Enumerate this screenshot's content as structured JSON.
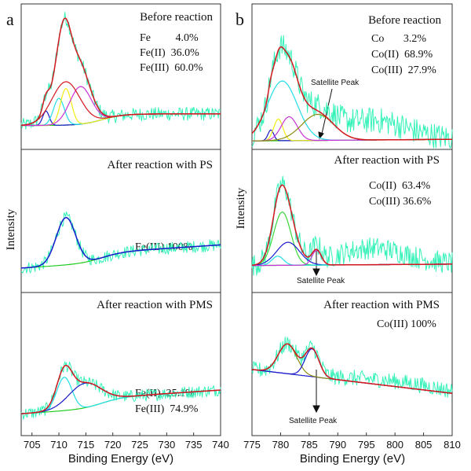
{
  "figure": {
    "panel_a_letter": "a",
    "panel_b_letter": "b",
    "y_axis_label": "Intensity",
    "x_axis_label": "Binding Energy (eV)"
  },
  "colors": {
    "raw": "#33f2b8",
    "envelope": "#d3171e",
    "blue": "#1a1acc",
    "cyan": "#22dde6",
    "yellow": "#f2ec14",
    "magenta": "#c833d6",
    "green": "#3ad83a",
    "olive": "#8c8c14",
    "baseline": "#22cc22"
  },
  "chart_data": [
    {
      "id": "fe_before",
      "type": "line",
      "title": "Before reaction",
      "xlim": [
        703,
        740
      ],
      "xticks": [
        705,
        710,
        715,
        720,
        725,
        730,
        735,
        740
      ],
      "xlabel": "Binding Energy (eV)",
      "ylabel": "Intensity",
      "annotations": [
        "Fe         4.0%",
        "Fe(II)  36.0%",
        "Fe(III)  60.0%"
      ],
      "components": [
        {
          "name": "Fe",
          "color": "blue",
          "center": 707.6,
          "height": 0.15,
          "width": 0.6
        },
        {
          "name": "Fe(II)",
          "color": "cyan",
          "center": 710.0,
          "height": 0.28,
          "width": 1.0
        },
        {
          "name": "Fe(II)",
          "color": "yellow",
          "center": 711.3,
          "height": 0.38,
          "width": 1.0
        },
        {
          "name": "Fe(III)",
          "color": "magenta",
          "center": 714.0,
          "height": 0.39,
          "width": 2.0
        },
        {
          "name": "Fe(III)",
          "color": "red",
          "center": 711.3,
          "height": 0.45,
          "width": 2.6
        }
      ]
    },
    {
      "id": "fe_ps",
      "type": "line",
      "title": "After reaction with PS",
      "xlim": [
        703,
        740
      ],
      "annotations": [
        "Fe(III) 100%"
      ],
      "components": [
        {
          "name": "Fe(III)",
          "color": "cyan",
          "center": 711.3,
          "height": 0.55,
          "width": 1.8
        }
      ]
    },
    {
      "id": "fe_pms",
      "type": "line",
      "title": "After reaction with PMS",
      "xlim": [
        703,
        740
      ],
      "annotations": [
        "Fe(II)  25.1%",
        "Fe(III)  74.9%"
      ],
      "components": [
        {
          "name": "Fe(II)",
          "color": "cyan",
          "center": 711.0,
          "height": 0.38,
          "width": 1.4
        },
        {
          "name": "Fe(III)",
          "color": "blue",
          "center": 714.8,
          "height": 0.28,
          "width": 3.0
        }
      ]
    },
    {
      "id": "co_before",
      "type": "line",
      "title": "Before reaction",
      "xlim": [
        775,
        810
      ],
      "xticks": [
        775,
        780,
        785,
        790,
        795,
        800,
        805,
        810
      ],
      "xlabel": "Binding Energy (eV)",
      "ylabel": "Intensity",
      "annotations": [
        "Co       3.2%",
        "Co(II)  68.9%",
        "Co(III)  27.9%"
      ],
      "satellite_label": "Satellite Peak",
      "components": [
        {
          "name": "Co",
          "color": "blue",
          "center": 778.3,
          "height": 0.1,
          "width": 0.5
        },
        {
          "name": "Co(III)",
          "color": "yellow",
          "center": 779.6,
          "height": 0.2,
          "width": 0.8
        },
        {
          "name": "Co(II)",
          "color": "cyan",
          "center": 780.3,
          "height": 0.55,
          "width": 2.6
        },
        {
          "name": "Co(II)",
          "color": "magenta",
          "center": 781.5,
          "height": 0.22,
          "width": 1.4
        },
        {
          "name": "Satellite",
          "color": "olive",
          "center": 786.5,
          "height": 0.24,
          "width": 2.8
        }
      ]
    },
    {
      "id": "co_ps",
      "type": "line",
      "title": "After reaction with PS",
      "xlim": [
        775,
        810
      ],
      "annotations": [
        "Co(II)  63.4%",
        "Co(III) 36.6%"
      ],
      "satellite_label": "Satellite Peak",
      "components": [
        {
          "name": "Co(II)",
          "color": "green",
          "center": 780.3,
          "height": 0.58,
          "width": 1.5
        },
        {
          "name": "Co(III)",
          "color": "blue",
          "center": 781.3,
          "height": 0.25,
          "width": 2.0
        },
        {
          "name": "Co",
          "color": "cyan",
          "center": 779.5,
          "height": 0.1,
          "width": 1.0
        },
        {
          "name": "Satellite",
          "color": "magenta",
          "center": 786.3,
          "height": 0.16,
          "width": 0.8
        }
      ]
    },
    {
      "id": "co_pms",
      "type": "line",
      "title": "After reaction with PMS",
      "xlim": [
        775,
        810
      ],
      "annotations": [
        "Co(III) 100%"
      ],
      "satellite_label": "Satellite Peak",
      "components": [
        {
          "name": "Co(III)",
          "color": "olive",
          "center": 781.2,
          "height": 0.45,
          "width": 1.6
        },
        {
          "name": "Satellite",
          "color": "blue",
          "center": 785.5,
          "height": 0.42,
          "width": 1.2
        }
      ]
    }
  ]
}
